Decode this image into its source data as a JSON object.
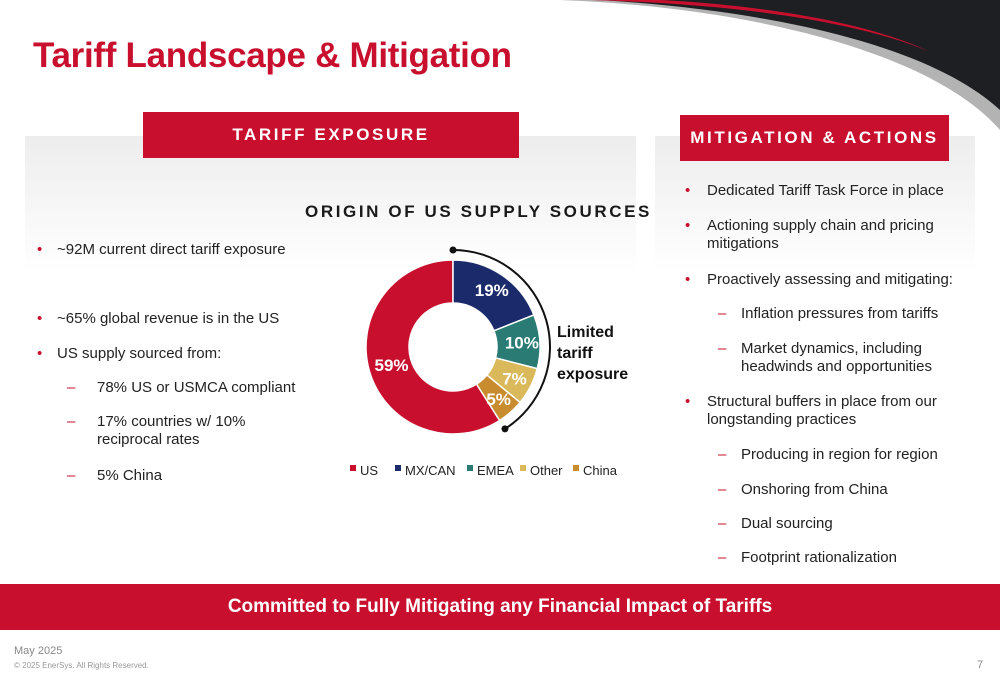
{
  "slide": {
    "title": "Tariff Landscape & Mitigation",
    "date": "May 2025",
    "copyright": "© 2025 EnerSys. All Rights Reserved.",
    "page_number": "7",
    "footer_banner": "Committed to Fully Mitigating any Financial Impact of Tariffs"
  },
  "left": {
    "header": "TARIFF EXPOSURE",
    "bullets": [
      {
        "level": 1,
        "lines": [
          "~92M current direct tariff exposure"
        ]
      },
      {
        "level": 1,
        "lines": [
          "~65% global revenue is in the US"
        ]
      },
      {
        "level": 1,
        "lines": [
          "US supply sourced from:"
        ]
      },
      {
        "level": 2,
        "lines": [
          "78% US or USMCA compliant"
        ]
      },
      {
        "level": 2,
        "lines": [
          "17% countries w/ 10%",
          "reciprocal rates"
        ]
      },
      {
        "level": 2,
        "lines": [
          "5% China"
        ]
      }
    ]
  },
  "right": {
    "header": "MITIGATION & ACTIONS",
    "bullets": [
      {
        "level": 1,
        "lines": [
          "Dedicated Tariff Task Force in place"
        ]
      },
      {
        "level": 1,
        "lines": [
          "Actioning supply chain and pricing",
          "mitigations"
        ]
      },
      {
        "level": 1,
        "lines": [
          "Proactively assessing and mitigating:"
        ]
      },
      {
        "level": 2,
        "lines": [
          "Inflation pressures from tariffs"
        ]
      },
      {
        "level": 2,
        "lines": [
          "Market dynamics, including",
          "headwinds and opportunities"
        ]
      },
      {
        "level": 1,
        "lines": [
          "Structural buffers in place from our",
          "longstanding practices"
        ]
      },
      {
        "level": 2,
        "lines": [
          "Producing in region for region"
        ]
      },
      {
        "level": 2,
        "lines": [
          "Onshoring from China"
        ]
      },
      {
        "level": 2,
        "lines": [
          "Dual sourcing"
        ]
      },
      {
        "level": 2,
        "lines": [
          "Footprint rationalization"
        ]
      }
    ]
  },
  "colors": {
    "brand_red": "#c8102e",
    "corner_dark": "#1d1f22",
    "corner_gray": "#b3b3b3"
  },
  "chart_data": {
    "type": "pie",
    "variant": "donut",
    "title": "ORIGIN OF US SUPPLY SOURCES",
    "categories": [
      "US",
      "MX/CAN",
      "EMEA",
      "Other",
      "China"
    ],
    "values": [
      59,
      19,
      10,
      7,
      5
    ],
    "value_labels": [
      "59%",
      "19%",
      "10%",
      "7%",
      "5%"
    ],
    "colors": [
      "#c8102e",
      "#1b2a6b",
      "#2a7b74",
      "#d9b95a",
      "#c88b2e"
    ],
    "legend_position": "bottom",
    "annotation": {
      "text": [
        "Limited",
        "tariff",
        "exposure"
      ],
      "spans_categories": [
        "MX/CAN",
        "EMEA",
        "Other",
        "China"
      ]
    }
  }
}
